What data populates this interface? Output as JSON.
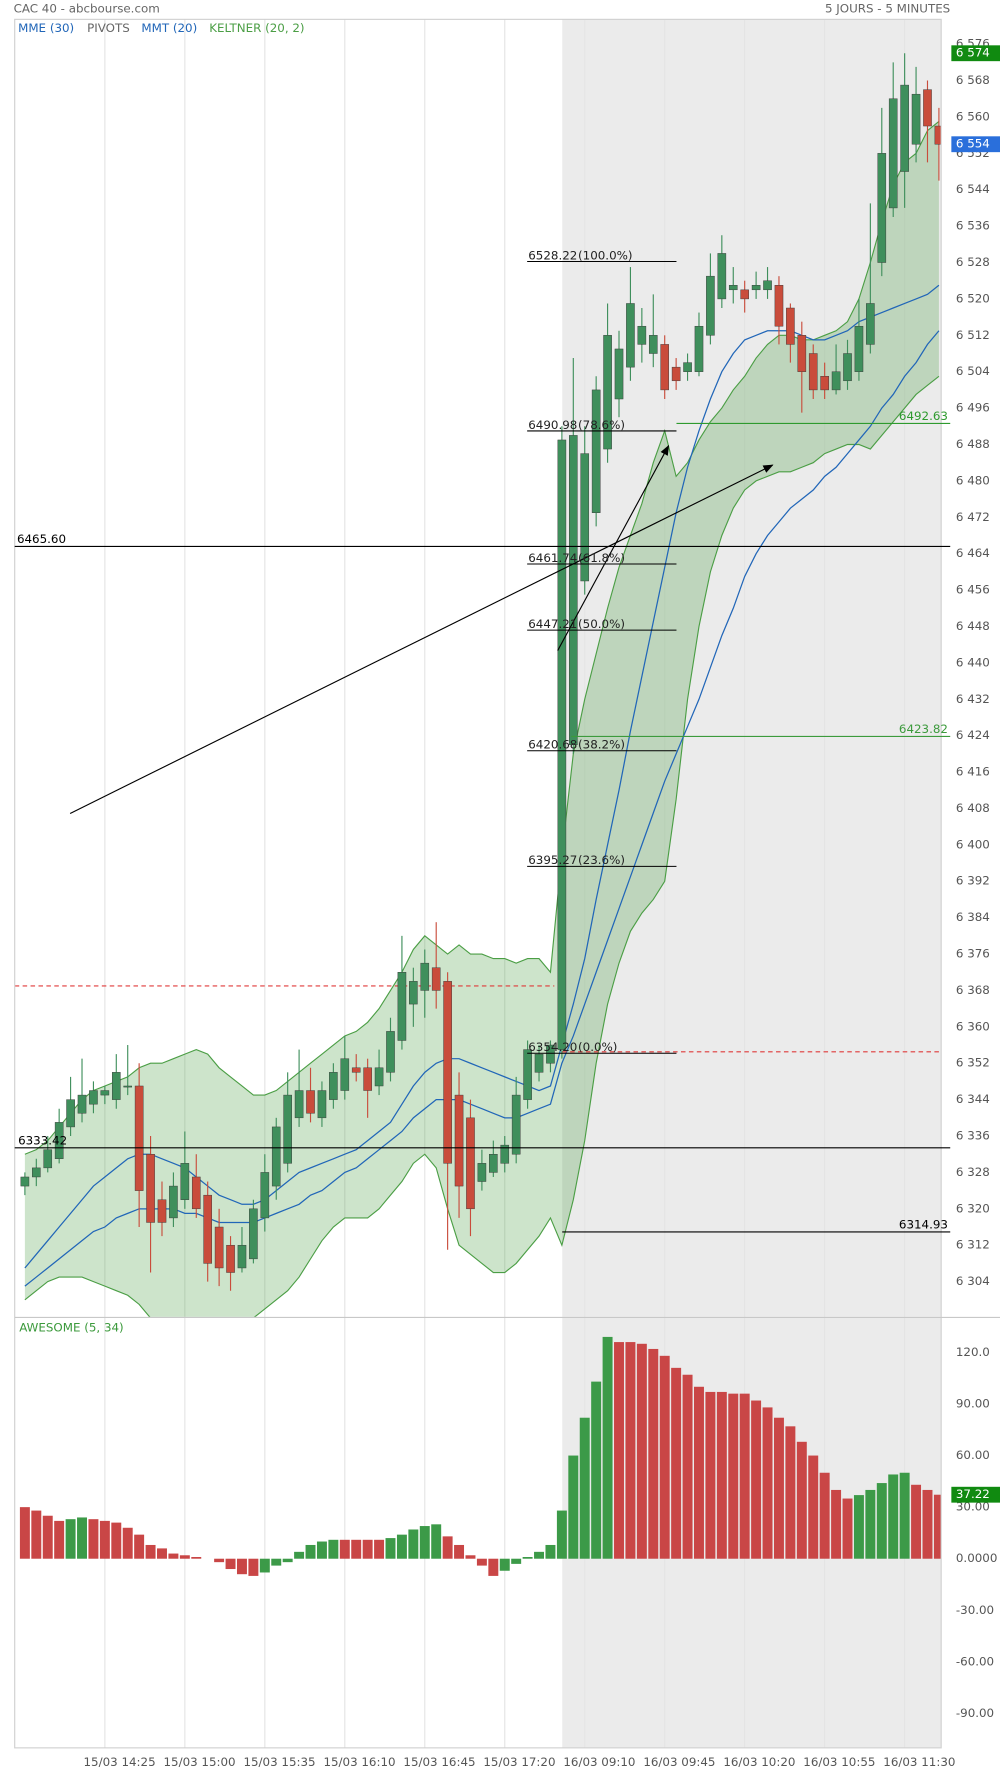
{
  "header": {
    "title": "CAC 40 - abcbourse.com",
    "period": "5 JOURS - 5 MINUTES"
  },
  "chart_data": [
    {
      "type": "candlestick",
      "categories": [
        null,
        null,
        null,
        null,
        null,
        null,
        null,
        "15/03 14:25",
        null,
        null,
        null,
        null,
        null,
        null,
        "15/03 15:00",
        null,
        null,
        null,
        null,
        null,
        null,
        "15/03 15:35",
        null,
        null,
        null,
        null,
        null,
        null,
        "15/03 16:10",
        null,
        null,
        null,
        null,
        null,
        null,
        "15/03 16:45",
        null,
        null,
        null,
        null,
        null,
        null,
        "15/03 17:20",
        null,
        null,
        null,
        null,
        null,
        null,
        "16/03 09:10",
        null,
        null,
        null,
        null,
        null,
        null,
        "16/03 09:45",
        null,
        null,
        null,
        null,
        null,
        null,
        "16/03 10:20",
        null,
        null,
        null,
        null,
        null,
        null,
        "16/03 10:55",
        null,
        null,
        null,
        null,
        null,
        null,
        "16/03 11:30",
        null,
        null,
        null
      ],
      "open": [
        6325,
        6327,
        6329,
        6331,
        6338,
        6341,
        6343,
        6345,
        6344,
        6347,
        6347,
        6332,
        6322,
        6318,
        6322,
        6327,
        6323,
        6316,
        6312,
        6307,
        6309,
        6318,
        6325,
        6330,
        6340,
        6346,
        6340,
        6344,
        6346,
        6351,
        6351,
        6347,
        6350,
        6357,
        6365,
        6368,
        6373,
        6370,
        6345,
        6340,
        6326,
        6328,
        6330,
        6332,
        6344,
        6350,
        6352,
        6355,
        6422,
        6458,
        6473,
        6487,
        6498,
        6505,
        6510,
        6508,
        6510,
        6505,
        6504,
        6504,
        6512,
        6520,
        6522,
        6522,
        6522,
        6522,
        6523,
        6518,
        6512,
        6508,
        6503,
        6500,
        6502,
        6504,
        6510,
        6528,
        6540,
        6548,
        6554,
        6566,
        6558
      ],
      "high": [
        6328,
        6331,
        6336,
        6342,
        6349,
        6353,
        6348,
        6347,
        6354,
        6356,
        6352,
        6336,
        6326,
        6328,
        6337,
        6332,
        6326,
        6320,
        6314,
        6316,
        6322,
        6332,
        6340,
        6350,
        6355,
        6351,
        6348,
        6352,
        6358,
        6354,
        6353,
        6355,
        6362,
        6380,
        6373,
        6377,
        6383,
        6372,
        6350,
        6344,
        6333,
        6335,
        6336,
        6349,
        6357,
        6356,
        6357,
        6492,
        6507,
        6492,
        6503,
        6519,
        6513,
        6527,
        6518,
        6521,
        6512,
        6507,
        6508,
        6517,
        6530,
        6534,
        6527,
        6524,
        6526,
        6527,
        6525,
        6519,
        6515,
        6510,
        6506,
        6510,
        6511,
        6520,
        6541,
        6562,
        6572,
        6574,
        6571,
        6568,
        6562
      ],
      "low": [
        6323,
        6325,
        6328,
        6330,
        6336,
        6339,
        6341,
        6343,
        6342,
        6345,
        6316,
        6306,
        6314,
        6316,
        6320,
        6318,
        6304,
        6303,
        6302,
        6306,
        6308,
        6315,
        6322,
        6328,
        6338,
        6339,
        6338,
        6342,
        6344,
        6348,
        6340,
        6345,
        6348,
        6355,
        6360,
        6362,
        6364,
        6311,
        6318,
        6314,
        6324,
        6327,
        6328,
        6330,
        6342,
        6348,
        6350,
        6353,
        6420,
        6455,
        6470,
        6484,
        6494,
        6502,
        6506,
        6505,
        6498,
        6500,
        6502,
        6503,
        6510,
        6518,
        6519,
        6517,
        6520,
        6520,
        6510,
        6506,
        6495,
        6498,
        6498,
        6499,
        6500,
        6502,
        6508,
        6525,
        6538,
        6540,
        6550,
        6550,
        6546
      ],
      "close": [
        6327,
        6329,
        6333,
        6339,
        6344,
        6345,
        6346,
        6346,
        6350,
        6347,
        6324,
        6317,
        6317,
        6325,
        6330,
        6320,
        6308,
        6307,
        6306,
        6312,
        6320,
        6328,
        6338,
        6345,
        6346,
        6341,
        6346,
        6350,
        6353,
        6350,
        6346,
        6351,
        6359,
        6372,
        6370,
        6374,
        6368,
        6330,
        6325,
        6320,
        6330,
        6332,
        6334,
        6345,
        6355,
        6354,
        6356,
        6489,
        6490,
        6486,
        6500,
        6512,
        6509,
        6519,
        6514,
        6512,
        6500,
        6502,
        6506,
        6514,
        6525,
        6530,
        6523,
        6520,
        6523,
        6524,
        6514,
        6510,
        6504,
        6500,
        6500,
        6504,
        6508,
        6514,
        6519,
        6552,
        6564,
        6567,
        6565,
        6558,
        6554
      ],
      "up_color": "#3f8f5c",
      "down_color": "#c94c3b",
      "series": [
        {
          "name": "MME (30)",
          "color": "#2166b8",
          "values": [
            6303,
            6305,
            6307,
            6309,
            6311,
            6313,
            6315,
            6316,
            6318,
            6319,
            6320,
            6320,
            6320,
            6320,
            6319,
            6319,
            6318,
            6317,
            6317,
            6317,
            6317,
            6318,
            6319,
            6320,
            6321,
            6323,
            6324,
            6326,
            6328,
            6329,
            6331,
            6333,
            6335,
            6337,
            6340,
            6342,
            6344,
            6344,
            6344,
            6343,
            6342,
            6341,
            6340,
            6340,
            6341,
            6342,
            6343,
            6352,
            6358,
            6365,
            6372,
            6379,
            6386,
            6393,
            6400,
            6407,
            6414,
            6420,
            6426,
            6432,
            6439,
            6446,
            6452,
            6459,
            6464,
            6468,
            6471,
            6474,
            6476,
            6478,
            6481,
            6483,
            6486,
            6489,
            6492,
            6496,
            6499,
            6503,
            6506,
            6510,
            6513
          ]
        },
        {
          "name": "MMT (20)",
          "color": "#2166b8",
          "values": [
            6307,
            6310,
            6313,
            6316,
            6319,
            6322,
            6325,
            6327,
            6329,
            6331,
            6332,
            6332,
            6331,
            6330,
            6329,
            6327,
            6325,
            6323,
            6322,
            6321,
            6321,
            6322,
            6324,
            6326,
            6328,
            6329,
            6330,
            6331,
            6332,
            6333,
            6335,
            6337,
            6339,
            6343,
            6347,
            6350,
            6352,
            6353,
            6353,
            6352,
            6351,
            6350,
            6349,
            6348,
            6347,
            6346,
            6347,
            6356,
            6365,
            6375,
            6388,
            6400,
            6412,
            6425,
            6437,
            6449,
            6461,
            6473,
            6483,
            6491,
            6498,
            6504,
            6508,
            6511,
            6512,
            6513,
            6513,
            6513,
            6512,
            6511,
            6511,
            6512,
            6513,
            6515,
            6516,
            6517,
            6518,
            6519,
            6520,
            6521,
            6523
          ]
        }
      ],
      "keltner": {
        "name": "KELTNER (20, 2)",
        "color": "#4b9e45",
        "upper": [
          6332,
          6333,
          6335,
          6338,
          6341,
          6344,
          6346,
          6347,
          6348,
          6349,
          6351,
          6352,
          6352,
          6353,
          6354,
          6355,
          6354,
          6351,
          6349,
          6347,
          6345,
          6345,
          6346,
          6348,
          6350,
          6352,
          6354,
          6356,
          6358,
          6359,
          6361,
          6364,
          6368,
          6372,
          6377,
          6380,
          6378,
          6376,
          6378,
          6376,
          6376,
          6375,
          6375,
          6374,
          6375,
          6375,
          6372,
          6398,
          6420,
          6432,
          6442,
          6452,
          6461,
          6468,
          6475,
          6484,
          6491,
          6481,
          6484,
          6489,
          6493,
          6496,
          6500,
          6503,
          6507,
          6510,
          6512,
          6512,
          6511,
          6511,
          6512,
          6513,
          6515,
          6520,
          6528,
          6537,
          6545,
          6550,
          6552,
          6557,
          6559
        ],
        "lower": [
          6300,
          6302,
          6304,
          6305,
          6305,
          6305,
          6304,
          6303,
          6302,
          6301,
          6299,
          6296,
          6294,
          6293,
          6292,
          6291,
          6291,
          6291,
          6292,
          6294,
          6296,
          6298,
          6300,
          6302,
          6305,
          6309,
          6313,
          6316,
          6318,
          6318,
          6318,
          6320,
          6323,
          6326,
          6330,
          6332,
          6329,
          6320,
          6312,
          6310,
          6308,
          6306,
          6306,
          6308,
          6311,
          6314,
          6318,
          6312,
          6322,
          6335,
          6352,
          6365,
          6374,
          6381,
          6385,
          6388,
          6392,
          6410,
          6432,
          6448,
          6460,
          6468,
          6474,
          6478,
          6480,
          6481,
          6482,
          6482,
          6483,
          6484,
          6486,
          6487,
          6488,
          6488,
          6487,
          6490,
          6493,
          6496,
          6499,
          6501,
          6503
        ]
      },
      "pivots": {
        "name": "PIVOTS",
        "color": "#e03a3a",
        "values": [
          6369,
          6354.5
        ]
      },
      "fibonacci": [
        {
          "value": 6528.22,
          "ratio": "(100.0%)"
        },
        {
          "value": 6490.98,
          "ratio": "(78.6%)"
        },
        {
          "value": 6461.74,
          "ratio": "(61.8%)"
        },
        {
          "value": 6447.21,
          "ratio": "(50.0%)"
        },
        {
          "value": 6420.68,
          "ratio": "(38.2%)"
        },
        {
          "value": 6395.27,
          "ratio": "(23.6%)"
        },
        {
          "value": 6354.2,
          "label": "6354.20",
          "ratio": "(0.0%)"
        }
      ],
      "hlines": [
        {
          "value": 6465.6,
          "label": "6465.60",
          "color": "#000000"
        },
        {
          "value": 6333.42,
          "color": "#000000"
        },
        {
          "value": 6492.63,
          "color": "#2e9a2e"
        },
        {
          "value": 6423.82,
          "color": "#3c9a3c"
        },
        {
          "value": 6314.93,
          "color": "#000000"
        }
      ],
      "price_markers": [
        {
          "value": 6574,
          "label": "6 574",
          "color": "#108a10"
        },
        {
          "value": 6554,
          "label": "6 554",
          "color": "#2a6fdb"
        }
      ],
      "ylim": [
        6296.5,
        6581.2
      ],
      "yticks": [
        {
          "value": 6304,
          "label": "6 304"
        },
        {
          "value": 6312,
          "label": "6 312"
        },
        {
          "value": 6320,
          "label": "6 320"
        },
        {
          "value": 6328,
          "label": "6 328"
        },
        {
          "value": 6336,
          "label": "6 336"
        },
        {
          "value": 6344,
          "label": "6 344"
        },
        {
          "value": 6352,
          "label": "6 352"
        },
        {
          "value": 6360,
          "label": "6 360"
        },
        {
          "value": 6368,
          "label": "6 368"
        },
        {
          "value": 6376,
          "label": "6 376"
        },
        {
          "value": 6384,
          "label": "6 384"
        },
        {
          "value": 6392,
          "label": "6 392"
        },
        {
          "value": 6400,
          "label": "6 400"
        },
        {
          "value": 6408,
          "label": "6 408"
        },
        {
          "value": 6416,
          "label": "6 416"
        },
        {
          "value": 6424,
          "label": "6 424"
        },
        {
          "value": 6432,
          "label": "6 432"
        },
        {
          "value": 6440,
          "label": "6 440"
        },
        {
          "value": 6448,
          "label": "6 448"
        },
        {
          "value": 6456,
          "label": "6 456"
        },
        {
          "value": 6464,
          "label": "6 464"
        },
        {
          "value": 6472,
          "label": "6 472"
        },
        {
          "value": 6480,
          "label": "6 480"
        },
        {
          "value": 6488,
          "label": "6 488"
        },
        {
          "value": 6496,
          "label": "6 496"
        },
        {
          "value": 6504,
          "label": "6 504"
        },
        {
          "value": 6512,
          "label": "6 512"
        },
        {
          "value": 6520,
          "label": "6 520"
        },
        {
          "value": 6528,
          "label": "6 528"
        },
        {
          "value": 6536,
          "label": "6 536"
        },
        {
          "value": 6544,
          "label": "6 544"
        },
        {
          "value": 6552,
          "label": "6 552"
        },
        {
          "value": 6560,
          "label": "6 560"
        },
        {
          "value": 6568,
          "label": "6 568"
        },
        {
          "value": 6576,
          "label": "6 576"
        }
      ],
      "grid": true
    },
    {
      "type": "bar",
      "series": [
        {
          "name": "AWESOME (5, 34)",
          "up_color": "#3c9a48",
          "down_color": "#c94646",
          "legend_color": "#3c9a3c",
          "values": [
            30,
            28,
            25,
            22,
            23,
            24,
            23,
            22,
            21,
            18,
            14,
            8,
            6,
            3,
            2,
            1,
            0,
            -2,
            -6,
            -9,
            -10,
            -8,
            -4,
            -2,
            4,
            8,
            10,
            11,
            11,
            11,
            11,
            11,
            12,
            14,
            17,
            19,
            20,
            13,
            8,
            2,
            -4,
            -10,
            -7,
            -3,
            1,
            4,
            8,
            28,
            60,
            82,
            103,
            129,
            126,
            126,
            125,
            122,
            118,
            111,
            107,
            100,
            97,
            97,
            96,
            96,
            92,
            88,
            82,
            77,
            68,
            60,
            50,
            40,
            35,
            37,
            40,
            44,
            49,
            50,
            43,
            40,
            37.22
          ]
        }
      ],
      "last_marker_color": "#108a10",
      "ylim": [
        -110,
        140
      ],
      "yticks": [
        {
          "value": 120,
          "label": "120.0"
        },
        {
          "value": 90,
          "label": "90.00"
        },
        {
          "value": 60,
          "label": "60.00"
        },
        {
          "value": 30,
          "label": "30.00"
        },
        {
          "value": 0,
          "label": "0.0000"
        },
        {
          "value": -30,
          "label": "-30.00"
        },
        {
          "value": -60,
          "label": "-60.00"
        },
        {
          "value": -90,
          "label": "-90.00"
        }
      ],
      "grid": true
    }
  ]
}
